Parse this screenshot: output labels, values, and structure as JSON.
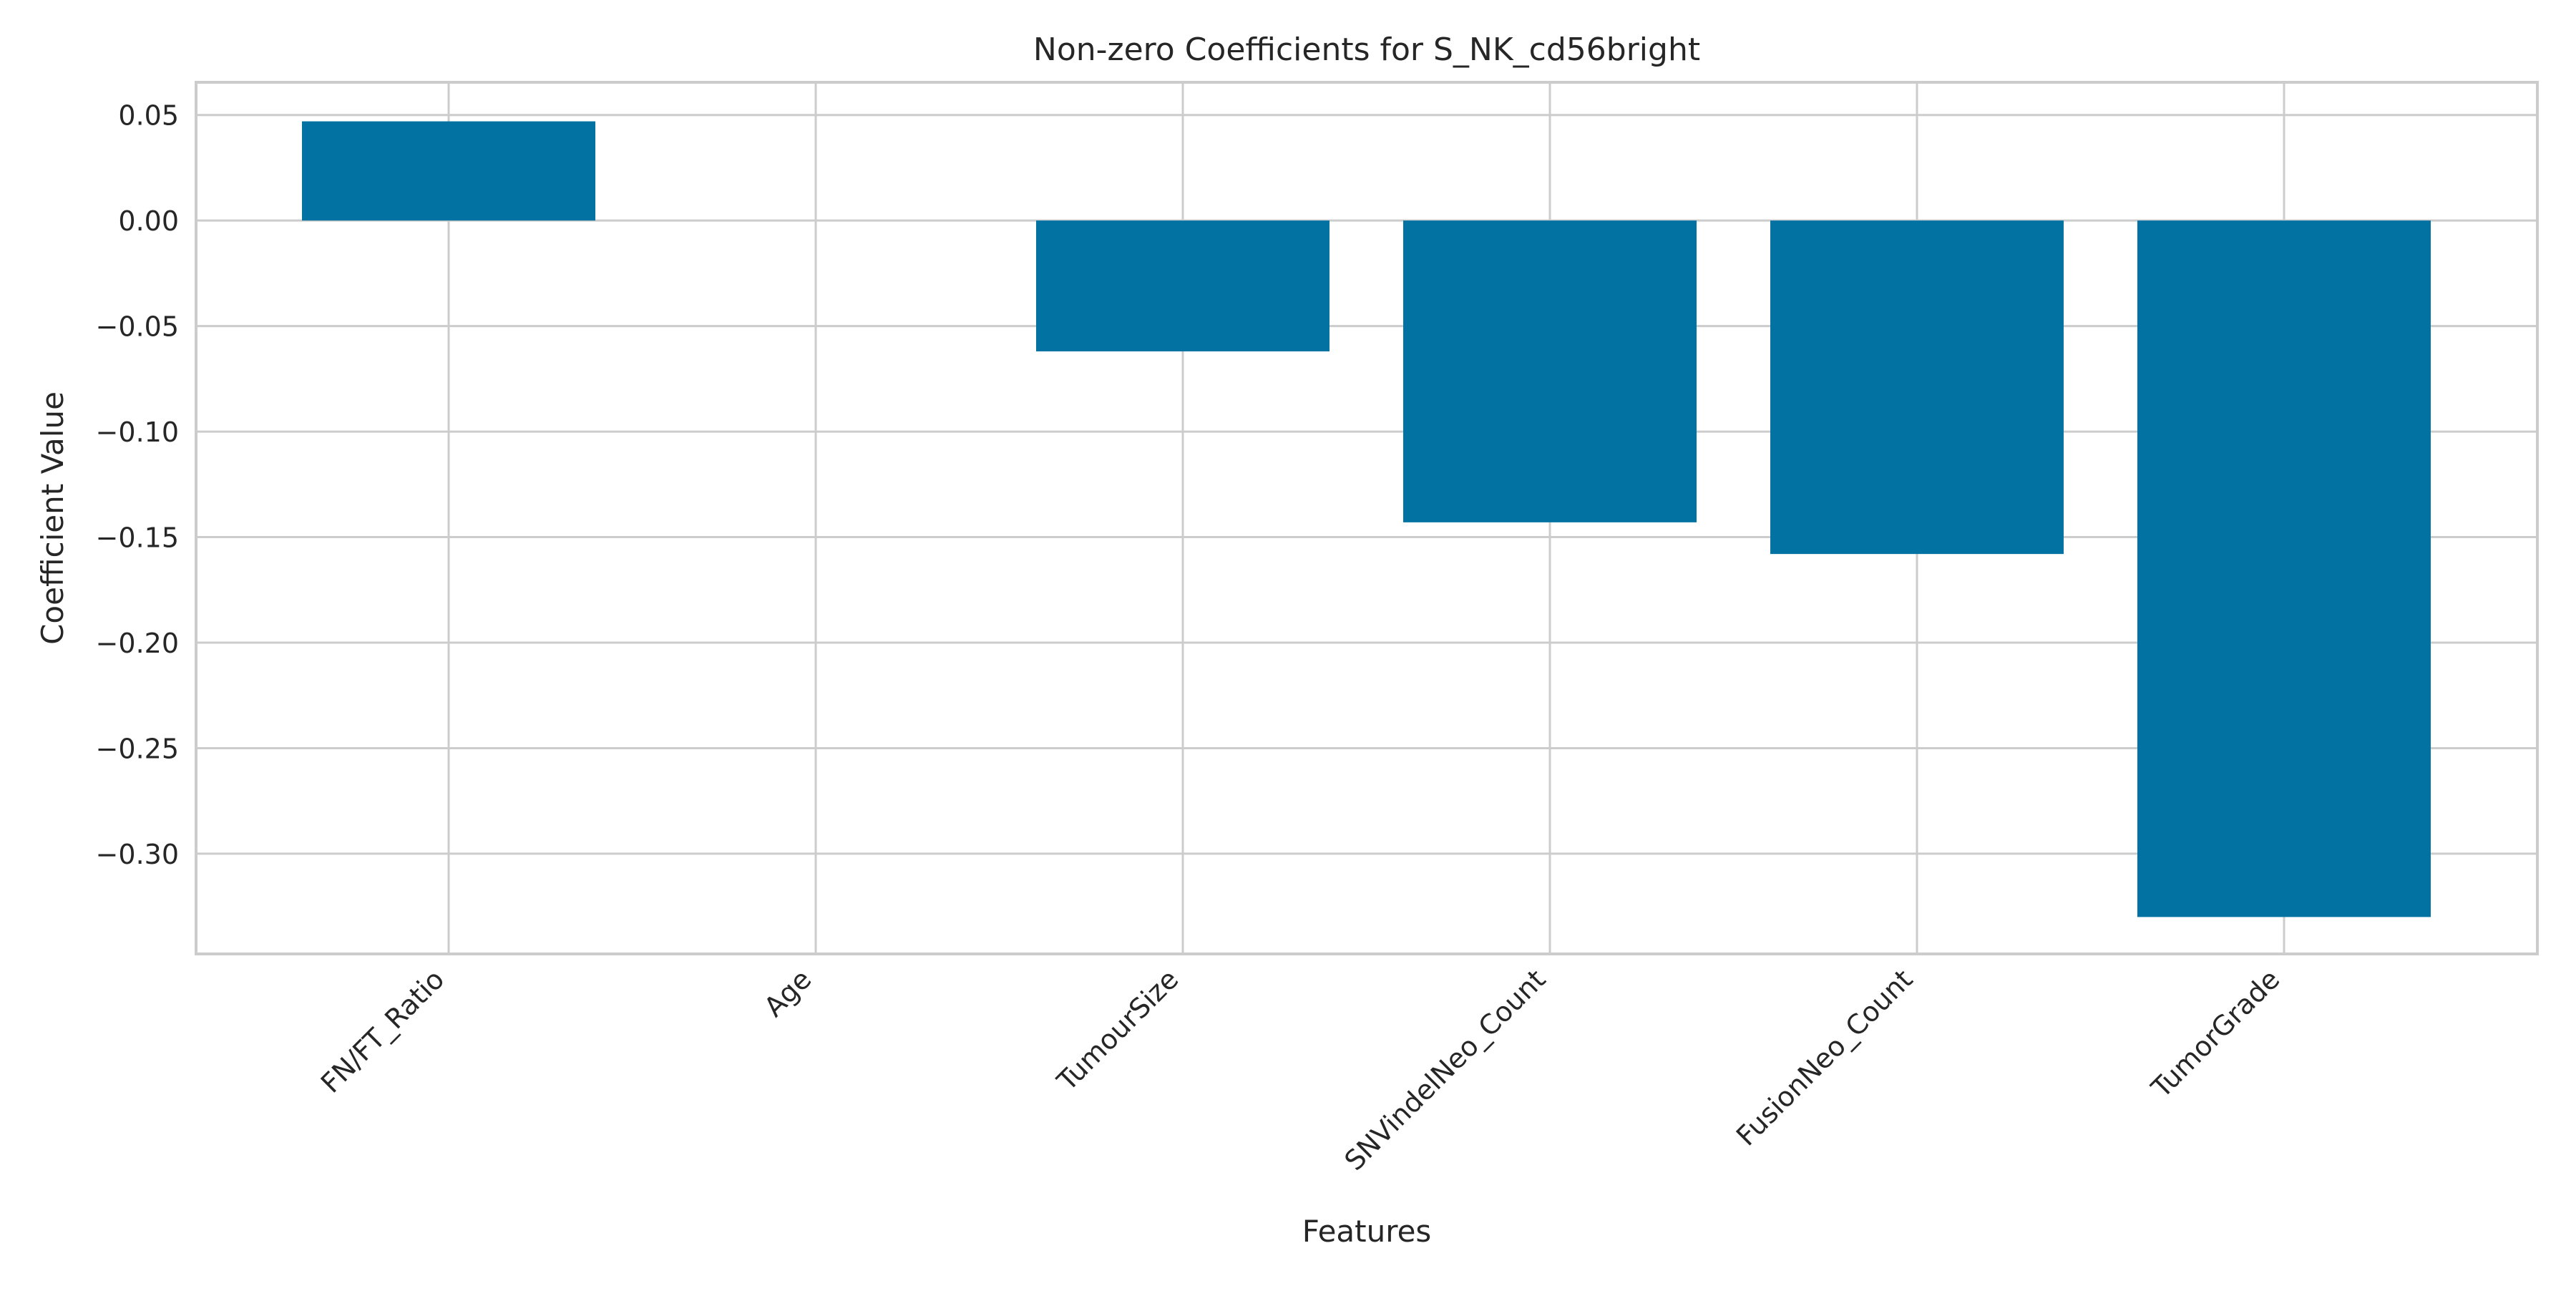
{
  "chart_data": {
    "type": "bar",
    "title": "Non-zero Coefficients for S_NK_cd56bright",
    "xlabel": "Features",
    "ylabel": "Coefficient Value",
    "categories": [
      "FN/FT_Ratio",
      "Age",
      "TumourSize",
      "SNVindelNeo_Count",
      "FusionNeo_Count",
      "TumorGrade"
    ],
    "values": [
      0.047,
      0.0,
      -0.062,
      -0.143,
      -0.158,
      -0.33
    ],
    "ylim": [
      -0.3475,
      0.0655
    ],
    "yticks": [
      0.05,
      0.0,
      -0.05,
      -0.1,
      -0.15,
      -0.2,
      -0.25,
      -0.3
    ],
    "ytick_labels": [
      "0.05",
      "0.00",
      "−0.05",
      "−0.10",
      "−0.15",
      "−0.20",
      "−0.25",
      "−0.30"
    ],
    "grid": true,
    "colors": {
      "bar": "#0272a2",
      "grid": "#cccccc",
      "axes_edge": "#cccccc",
      "text": "#262626"
    }
  }
}
